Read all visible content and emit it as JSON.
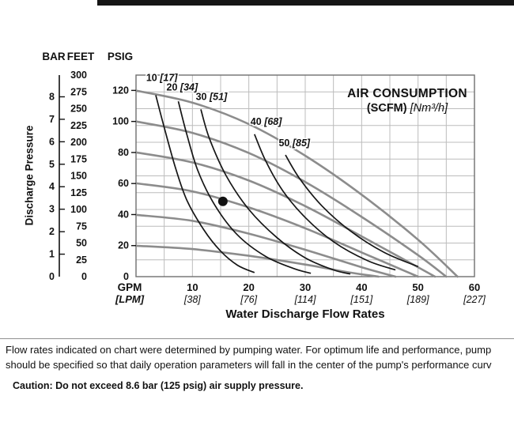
{
  "top_bar": {
    "color": "#151515"
  },
  "axis_headers": {
    "bar": "BAR",
    "feet": "FEET",
    "psig": "PSIG"
  },
  "y_axis_title": "Discharge Pressure",
  "x_axis_title": "Water Discharge Flow Rates",
  "legend_title": {
    "line1": "AIR CONSUMPTION",
    "line2_bold": "(SCFM)",
    "line2_italic": "[Nm³/h]"
  },
  "footnote": {
    "line1": "Flow rates indicated on chart were determined by pumping water. For optimum life and performance, pump",
    "line2": "should be specified so that daily operation parameters will fall in the center of the pump's performance curv",
    "caution": "Caution: Do not exceed 8.6 bar (125 psig) air supply pressure."
  },
  "chart_data": {
    "type": "line",
    "title": "AIR CONSUMPTION (SCFM) [Nm³/h]",
    "xlabel": "Water Discharge Flow Rates",
    "ylabel": "Discharge Pressure",
    "x_unit_primary": "GPM",
    "x_unit_secondary": "[LPM]",
    "xlim_gpm": [
      0,
      60
    ],
    "ylim_feet": [
      0,
      300
    ],
    "x_grid_step_gpm": 5,
    "y_grid_step_feet": 25,
    "grid": true,
    "legend_position": "top-right inside plot",
    "feet_per_psig": 2.31,
    "feet_per_bar": 33.46,
    "bar_ticks": [
      0,
      1,
      2,
      3,
      4,
      5,
      6,
      7,
      8
    ],
    "feet_ticks": [
      0,
      25,
      50,
      75,
      100,
      125,
      150,
      175,
      200,
      225,
      250,
      275,
      300
    ],
    "psig_ticks": [
      0,
      20,
      40,
      60,
      80,
      100,
      120
    ],
    "x_ticks": [
      {
        "gpm": "10",
        "lpm": "[38]"
      },
      {
        "gpm": "20",
        "lpm": "[76]"
      },
      {
        "gpm": "30",
        "lpm": "[114]"
      },
      {
        "gpm": "40",
        "lpm": "[151]"
      },
      {
        "gpm": "50",
        "lpm": "[189]"
      },
      {
        "gpm": "60",
        "lpm": "[227]"
      }
    ],
    "performance_curves_feet_vs_gpm": [
      {
        "id": "curve-1",
        "points": [
          [
            0,
            277
          ],
          [
            10,
            259
          ],
          [
            20,
            227
          ],
          [
            30,
            180
          ],
          [
            40,
            122
          ],
          [
            50,
            55
          ],
          [
            57,
            0
          ]
        ]
      },
      {
        "id": "curve-2",
        "points": [
          [
            0,
            231
          ],
          [
            10,
            214
          ],
          [
            20,
            184
          ],
          [
            30,
            141
          ],
          [
            40,
            89
          ],
          [
            50,
            32
          ],
          [
            55,
            0
          ]
        ]
      },
      {
        "id": "curve-3",
        "points": [
          [
            0,
            185
          ],
          [
            10,
            170
          ],
          [
            20,
            143
          ],
          [
            30,
            105
          ],
          [
            40,
            60
          ],
          [
            50,
            14
          ],
          [
            53,
            0
          ]
        ]
      },
      {
        "id": "curve-4",
        "points": [
          [
            0,
            139
          ],
          [
            10,
            127
          ],
          [
            20,
            103
          ],
          [
            30,
            72
          ],
          [
            40,
            36
          ],
          [
            50,
            0
          ]
        ]
      },
      {
        "id": "curve-5",
        "points": [
          [
            0,
            92
          ],
          [
            10,
            83
          ],
          [
            20,
            64
          ],
          [
            30,
            40
          ],
          [
            40,
            14
          ],
          [
            46,
            0
          ]
        ]
      },
      {
        "id": "curve-6",
        "points": [
          [
            0,
            46
          ],
          [
            10,
            41
          ],
          [
            20,
            31
          ],
          [
            30,
            18
          ],
          [
            38,
            6
          ],
          [
            43,
            0
          ]
        ]
      }
    ],
    "air_consumption_curves_scfm": [
      {
        "scfm": "10",
        "nm3h": "[17]",
        "label_gpm": 1.8,
        "label_feet": 291,
        "points": [
          [
            3.5,
            270
          ],
          [
            5,
            222
          ],
          [
            7,
            162
          ],
          [
            9,
            114
          ],
          [
            12,
            70
          ],
          [
            15,
            38
          ],
          [
            18,
            17
          ],
          [
            21,
            6
          ]
        ]
      },
      {
        "scfm": "20",
        "nm3h": "[34]",
        "label_gpm": 5.4,
        "label_feet": 277,
        "points": [
          [
            7.5,
            261
          ],
          [
            9,
            212
          ],
          [
            11,
            157
          ],
          [
            14,
            106
          ],
          [
            18,
            62
          ],
          [
            23,
            30
          ],
          [
            28,
            12
          ],
          [
            31,
            5
          ]
        ]
      },
      {
        "scfm": "30",
        "nm3h": "[51]",
        "label_gpm": 10.6,
        "label_feet": 263,
        "points": [
          [
            11.5,
            249
          ],
          [
            13,
            206
          ],
          [
            16,
            150
          ],
          [
            20,
            100
          ],
          [
            25,
            58
          ],
          [
            30,
            28
          ],
          [
            35,
            10
          ],
          [
            38,
            4
          ]
        ]
      },
      {
        "scfm": "40",
        "nm3h": "[68]",
        "label_gpm": 20.3,
        "label_feet": 226,
        "points": [
          [
            21,
            212
          ],
          [
            23,
            172
          ],
          [
            26,
            128
          ],
          [
            30,
            88
          ],
          [
            35,
            52
          ],
          [
            41,
            24
          ],
          [
            46,
            10
          ]
        ]
      },
      {
        "scfm": "50",
        "nm3h": "[85]",
        "label_gpm": 25.3,
        "label_feet": 194,
        "points": [
          [
            26.5,
            181
          ],
          [
            29,
            146
          ],
          [
            33,
            105
          ],
          [
            38,
            68
          ],
          [
            44,
            36
          ],
          [
            50,
            15
          ]
        ]
      }
    ],
    "operating_point": {
      "gpm": 15.4,
      "feet": 112
    }
  }
}
